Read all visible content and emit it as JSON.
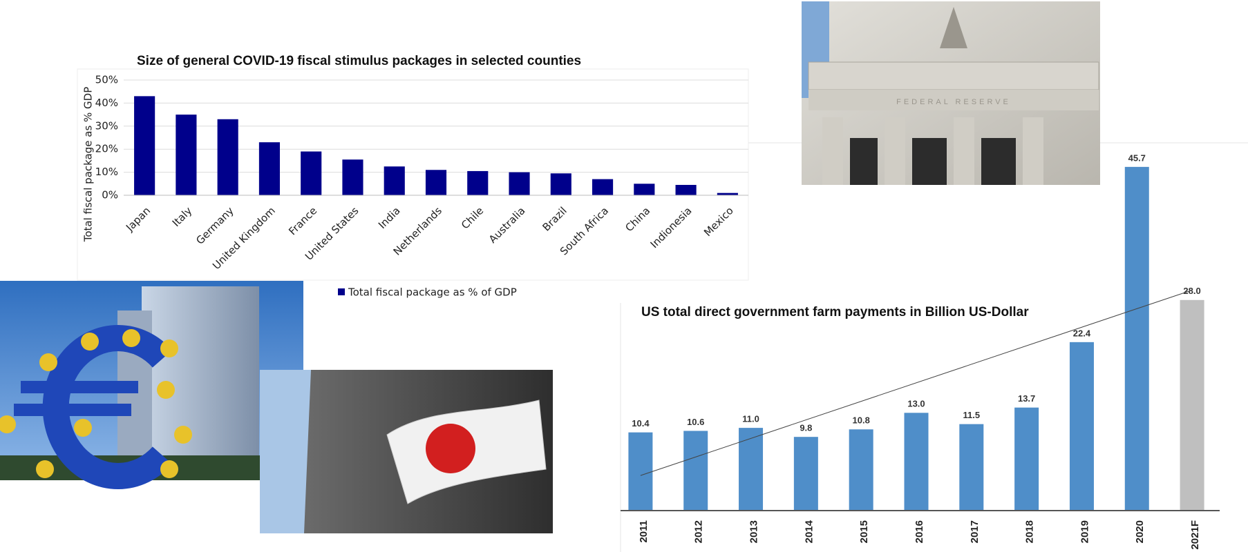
{
  "chart_data": [
    {
      "type": "bar",
      "title": "Size of general COVID-19 fiscal stimulus packages in selected counties",
      "y_label": "Total fiscal package as % GDP",
      "categories": [
        "Japan",
        "Italy",
        "Germany",
        "United Kingdom",
        "France",
        "United States",
        "India",
        "Netherlands",
        "Chile",
        "Australia",
        "Brazil",
        "South Africa",
        "China",
        "Indionesia",
        "Mexico"
      ],
      "series": [
        {
          "name": "Total fiscal package as % of GDP",
          "color": "#00008b",
          "values": [
            43,
            35,
            33,
            23,
            19,
            15.5,
            12.5,
            11,
            10.5,
            10,
            9.5,
            7,
            5,
            4.5,
            1
          ]
        }
      ],
      "ylim": [
        0,
        50
      ],
      "yticks": [
        {
          "value": 0,
          "label": "0%"
        },
        {
          "value": 10,
          "label": "10%"
        },
        {
          "value": 20,
          "label": "20%"
        },
        {
          "value": 30,
          "label": "30%"
        },
        {
          "value": 40,
          "label": "40%"
        },
        {
          "value": 50,
          "label": "50%"
        }
      ],
      "grid": true,
      "legend": "bottom"
    },
    {
      "type": "bar",
      "title": "US total direct government farm payments in Billion US-Dollar",
      "categories": [
        "2011",
        "2012",
        "2013",
        "2014",
        "2015",
        "2016",
        "2017",
        "2018",
        "2019",
        "2020",
        "2021F"
      ],
      "values": [
        10.4,
        10.6,
        11.0,
        9.8,
        10.8,
        13.0,
        11.5,
        13.7,
        22.4,
        45.7,
        28.0
      ],
      "value_labels": [
        "10.4",
        "10.6",
        "11.0",
        "9.8",
        "10.8",
        "13.0",
        "11.5",
        "13.7",
        "22.4",
        "45.7",
        "28.0"
      ],
      "colors": [
        "#4f8ec9",
        "#4f8ec9",
        "#4f8ec9",
        "#4f8ec9",
        "#4f8ec9",
        "#4f8ec9",
        "#4f8ec9",
        "#4f8ec9",
        "#4f8ec9",
        "#4f8ec9",
        "#bfbfbf"
      ],
      "ylim": [
        0,
        50
      ],
      "trendline": true
    }
  ]
}
